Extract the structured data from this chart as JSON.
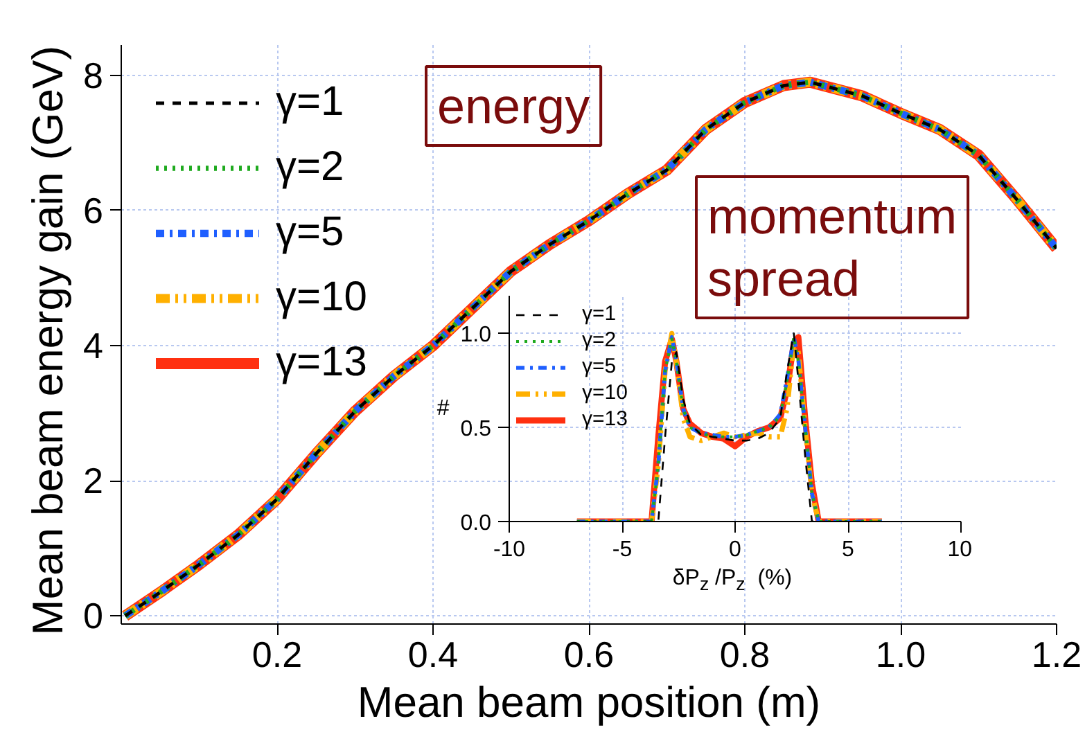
{
  "chart_data": [
    {
      "type": "line",
      "xlabel": "Mean beam position (m)",
      "ylabel": "Mean beam energy gain  (GeV)",
      "x": [
        0.005,
        0.05,
        0.1,
        0.15,
        0.2,
        0.25,
        0.3,
        0.35,
        0.4,
        0.45,
        0.5,
        0.55,
        0.6,
        0.65,
        0.7,
        0.75,
        0.8,
        0.85,
        0.884,
        0.95,
        1.0,
        1.05,
        1.1,
        1.15,
        1.2
      ],
      "series": [
        {
          "name": "γ=1",
          "color": "#000000",
          "line_style": "dashed",
          "values": [
            0.0,
            0.35,
            0.76,
            1.2,
            1.73,
            2.4,
            3.03,
            3.55,
            4.0,
            4.55,
            5.1,
            5.5,
            5.85,
            6.25,
            6.6,
            7.2,
            7.6,
            7.85,
            7.9,
            7.7,
            7.44,
            7.2,
            6.82,
            6.15,
            5.44
          ]
        },
        {
          "name": "γ=2",
          "color": "#1faa1f",
          "line_style": "dotted",
          "values": [
            0.0,
            0.35,
            0.76,
            1.2,
            1.73,
            2.4,
            3.03,
            3.55,
            4.0,
            4.55,
            5.1,
            5.5,
            5.85,
            6.25,
            6.6,
            7.2,
            7.6,
            7.85,
            7.9,
            7.7,
            7.44,
            7.2,
            6.82,
            6.15,
            5.44
          ]
        },
        {
          "name": "γ=5",
          "color": "#1f5fff",
          "line_style": "dashdot",
          "values": [
            0.0,
            0.35,
            0.76,
            1.2,
            1.73,
            2.4,
            3.03,
            3.55,
            4.0,
            4.55,
            5.1,
            5.5,
            5.85,
            6.25,
            6.6,
            7.2,
            7.6,
            7.85,
            7.9,
            7.7,
            7.44,
            7.2,
            6.82,
            6.15,
            5.44
          ]
        },
        {
          "name": "γ=10",
          "color": "#ffb000",
          "line_style": "dashdotdot",
          "values": [
            0.0,
            0.35,
            0.76,
            1.2,
            1.73,
            2.4,
            3.03,
            3.55,
            4.0,
            4.55,
            5.1,
            5.5,
            5.85,
            6.25,
            6.6,
            7.2,
            7.6,
            7.85,
            7.9,
            7.7,
            7.44,
            7.2,
            6.82,
            6.15,
            5.44
          ]
        },
        {
          "name": "γ=13",
          "color": "#ff3010",
          "line_style": "solid",
          "values": [
            0.0,
            0.35,
            0.76,
            1.2,
            1.73,
            2.4,
            3.03,
            3.55,
            4.0,
            4.55,
            5.1,
            5.5,
            5.85,
            6.25,
            6.6,
            7.2,
            7.6,
            7.85,
            7.9,
            7.7,
            7.44,
            7.2,
            6.82,
            6.15,
            5.44
          ]
        }
      ],
      "xlim": [
        0,
        1.2
      ],
      "ylim": [
        -0.12,
        8.45
      ],
      "xticks": [
        0.2,
        0.4,
        0.6,
        0.8,
        {
          "value": 1.0,
          "label": "1.0"
        },
        1.2
      ],
      "yticks": [
        0,
        2,
        4,
        6,
        8
      ],
      "grid": true,
      "legend": "top left",
      "annotations": [
        "energy",
        "momentum spread"
      ]
    },
    {
      "type": "line",
      "xlabel": "δP$_{z}$ /P$_{z}$  (%)",
      "ylabel": "#",
      "x": [
        -7,
        -4.5,
        -3.7,
        -3.4,
        -3.1,
        -2.8,
        -2.6,
        -2.3,
        -2,
        -1.5,
        -1,
        -0.5,
        0,
        0.5,
        1,
        1.5,
        2,
        2.3,
        2.6,
        2.8,
        3.1,
        3.4,
        3.7,
        4.5,
        6.5
      ],
      "series": [
        {
          "name": "γ=1",
          "color": "#000000",
          "line_style": "dashed",
          "values": [
            0,
            0,
            0,
            0,
            0.45,
            0.85,
            0.9,
            0.65,
            0.52,
            0.46,
            0.45,
            0.44,
            0.43,
            0.43,
            0.44,
            0.47,
            0.55,
            0.8,
            1.0,
            0.75,
            0.35,
            0,
            0,
            0,
            0
          ]
        },
        {
          "name": "γ=2",
          "color": "#1faa1f",
          "line_style": "dotted",
          "values": [
            0,
            0,
            0,
            0.3,
            0.8,
            0.97,
            0.85,
            0.6,
            0.5,
            0.47,
            0.45,
            0.45,
            0.45,
            0.46,
            0.48,
            0.5,
            0.56,
            0.75,
            0.98,
            0.85,
            0.5,
            0.15,
            0,
            0,
            0
          ]
        },
        {
          "name": "γ=5",
          "color": "#1f5fff",
          "line_style": "dashdot",
          "values": [
            0,
            0,
            0,
            0.3,
            0.8,
            0.98,
            0.85,
            0.6,
            0.5,
            0.47,
            0.46,
            0.45,
            0.45,
            0.46,
            0.48,
            0.5,
            0.57,
            0.76,
            0.98,
            0.86,
            0.5,
            0.15,
            0,
            0,
            0
          ]
        },
        {
          "name": "γ=10",
          "color": "#ffb000",
          "line_style": "dashdotdot",
          "values": [
            0,
            0,
            0,
            0.3,
            0.8,
            1.0,
            0.85,
            0.55,
            0.45,
            0.43,
            0.45,
            0.47,
            0.45,
            0.46,
            0.47,
            0.45,
            0.45,
            0.6,
            0.95,
            0.9,
            0.5,
            0.15,
            0,
            0,
            0
          ]
        },
        {
          "name": "γ=13",
          "color": "#ff3010",
          "line_style": "solid",
          "values": [
            0,
            0,
            0,
            0.45,
            0.85,
            0.97,
            0.85,
            0.6,
            0.52,
            0.47,
            0.45,
            0.44,
            0.4,
            0.45,
            0.48,
            0.5,
            0.55,
            0.7,
            0.95,
            0.98,
            0.55,
            0.2,
            0,
            0,
            0
          ]
        }
      ],
      "xlim": [
        -10,
        10
      ],
      "ylim": [
        0,
        1.2
      ],
      "xticks": [
        -10,
        -5,
        0,
        5,
        10
      ],
      "yticks": [
        {
          "value": 0,
          "label": "0.0"
        },
        0.5,
        {
          "value": 1.0,
          "label": "1.0"
        }
      ],
      "grid": true,
      "legend": "top left"
    }
  ]
}
